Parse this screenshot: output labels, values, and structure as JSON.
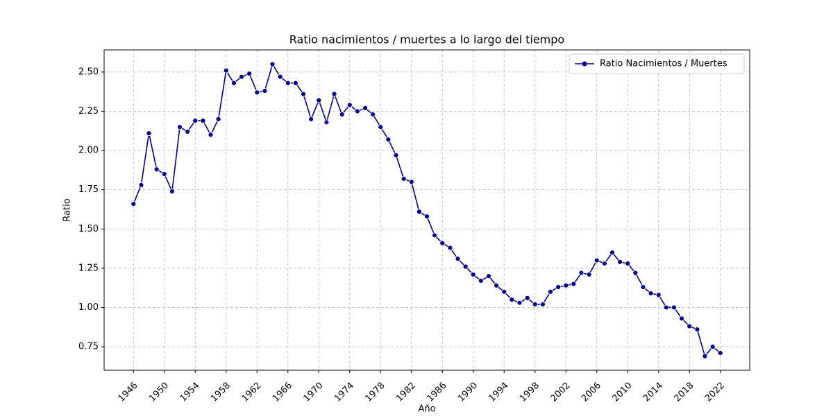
{
  "chart_data": {
    "type": "line",
    "title": "Ratio nacimientos / muertes a lo largo del tiempo",
    "x_label": "Año",
    "y_label": "Ratio",
    "x": [
      1946,
      1947,
      1948,
      1949,
      1950,
      1951,
      1952,
      1953,
      1954,
      1955,
      1956,
      1957,
      1958,
      1959,
      1960,
      1961,
      1962,
      1963,
      1964,
      1965,
      1966,
      1967,
      1968,
      1969,
      1970,
      1971,
      1972,
      1973,
      1974,
      1975,
      1976,
      1977,
      1978,
      1979,
      1980,
      1981,
      1982,
      1983,
      1984,
      1985,
      1986,
      1987,
      1988,
      1989,
      1990,
      1991,
      1992,
      1993,
      1994,
      1995,
      1996,
      1997,
      1998,
      1999,
      2000,
      2001,
      2002,
      2003,
      2004,
      2005,
      2006,
      2007,
      2008,
      2009,
      2010,
      2011,
      2012,
      2013,
      2014,
      2015,
      2016,
      2017,
      2018,
      2019,
      2020,
      2021,
      2022
    ],
    "series": [
      {
        "name": "Ratio Nacimientos / Muertes",
        "color": "#00008b",
        "values": [
          1.66,
          1.78,
          2.11,
          1.88,
          1.85,
          1.74,
          2.15,
          2.12,
          2.19,
          2.19,
          2.1,
          2.2,
          2.51,
          2.43,
          2.47,
          2.49,
          2.37,
          2.38,
          2.55,
          2.47,
          2.43,
          2.43,
          2.36,
          2.2,
          2.32,
          2.18,
          2.36,
          2.23,
          2.29,
          2.25,
          2.27,
          2.23,
          2.15,
          2.07,
          1.97,
          1.82,
          1.8,
          1.61,
          1.58,
          1.46,
          1.41,
          1.38,
          1.31,
          1.26,
          1.21,
          1.17,
          1.2,
          1.14,
          1.1,
          1.05,
          1.03,
          1.06,
          1.02,
          1.02,
          1.1,
          1.13,
          1.14,
          1.15,
          1.22,
          1.21,
          1.3,
          1.28,
          1.35,
          1.29,
          1.28,
          1.22,
          1.13,
          1.09,
          1.08,
          1.0,
          1.0,
          0.93,
          0.88,
          0.86,
          0.69,
          0.75,
          0.71
        ]
      }
    ],
    "xlim": [
      1942.2,
      2025.8
    ],
    "xticks": [
      1946,
      1950,
      1954,
      1958,
      1962,
      1966,
      1970,
      1974,
      1978,
      1982,
      1986,
      1990,
      1994,
      1998,
      2002,
      2006,
      2010,
      2014,
      2018,
      2022
    ],
    "ylim": [
      0.6,
      2.641
    ],
    "yticks": [
      {
        "value": 0.75,
        "label": "0.75"
      },
      {
        "value": 1,
        "label": "1.00"
      },
      {
        "value": 1.25,
        "label": "1.25"
      },
      {
        "value": 1.5,
        "label": "1.50"
      },
      {
        "value": 1.75,
        "label": "1.75"
      },
      {
        "value": 2,
        "label": "2.00"
      },
      {
        "value": 2.25,
        "label": "2.25"
      },
      {
        "value": 2.5,
        "label": "2.50"
      }
    ],
    "grid": true,
    "legend": "upper right"
  }
}
